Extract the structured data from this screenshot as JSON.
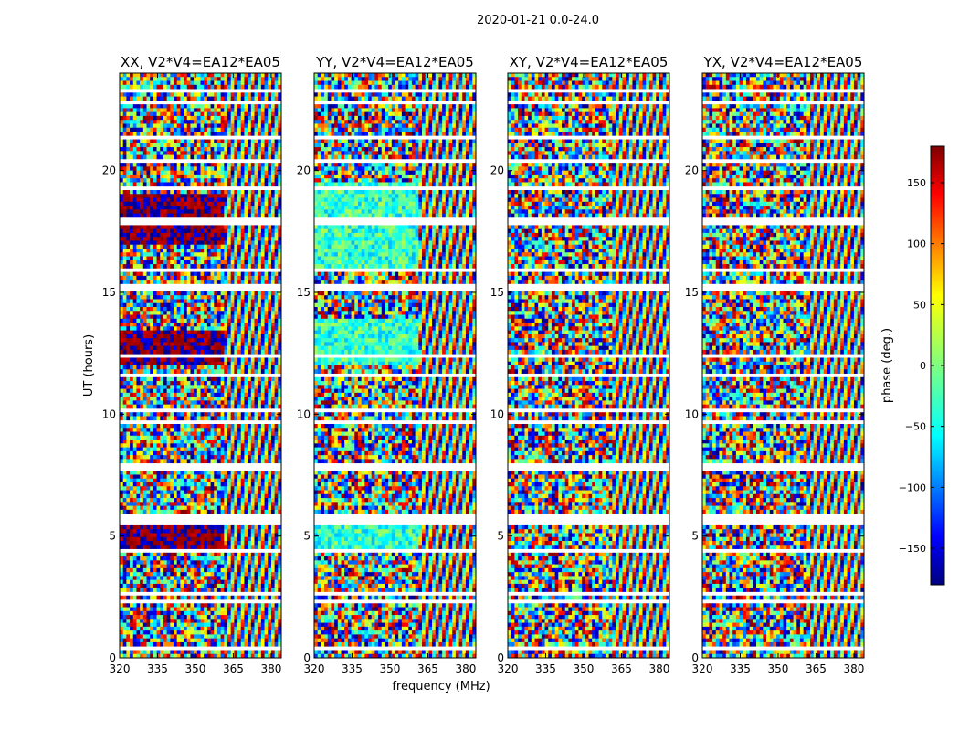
{
  "figure": {
    "suptitle": "2020-01-21 0.0-24.0"
  },
  "chart_data": {
    "type": "heatmap",
    "suptitle": "2020-01-21 0.0-24.0",
    "xlabel": "frequency (MHz)",
    "ylabel": "UT (hours)",
    "xlim": [
      320,
      384
    ],
    "ylim": [
      0,
      24
    ],
    "xticks": [
      320,
      335,
      350,
      365,
      380
    ],
    "xtick_labels": [
      "320",
      "335",
      "350",
      "365",
      "380"
    ],
    "yticks": [
      0,
      5,
      10,
      15,
      20
    ],
    "ytick_labels": [
      "0",
      "5",
      "10",
      "15",
      "20"
    ],
    "colorbar": {
      "label": "phase (deg.)",
      "range": [
        -180,
        180
      ],
      "colormap": "jet",
      "ticks": [
        150,
        100,
        50,
        0,
        -50,
        -100,
        -150
      ],
      "tick_labels": [
        "150",
        "100",
        "50",
        "0",
        "−50",
        "−100",
        "−150"
      ],
      "colors": [
        "#00007f",
        "#0000ff",
        "#007fff",
        "#00ffff",
        "#7fff7f",
        "#ffff00",
        "#ff7f00",
        "#ff0000",
        "#7f0000"
      ]
    },
    "panels": [
      {
        "title": "XX, V2*V4=EA12*EA05",
        "polarization": "XX",
        "theme": "noisy-red-blue"
      },
      {
        "title": "YY, V2*V4=EA12*EA05",
        "polarization": "YY",
        "theme": "noisy-cyan"
      },
      {
        "title": "XY, V2*V4=EA12*EA05",
        "polarization": "XY",
        "theme": "noisy"
      },
      {
        "title": "YX, V2*V4=EA12*EA05",
        "polarization": "YX",
        "theme": "noisy"
      }
    ],
    "flagged_gaps_hours": [
      [
        0.35,
        0.5
      ],
      [
        2.2,
        2.35
      ],
      [
        2.5,
        2.7
      ],
      [
        4.3,
        4.5
      ],
      [
        5.5,
        5.9
      ],
      [
        7.7,
        7.95
      ],
      [
        9.65,
        9.8
      ],
      [
        10.05,
        10.25
      ],
      [
        11.5,
        11.6
      ],
      [
        12.4,
        12.5
      ],
      [
        14.85,
        14.95
      ],
      [
        15.0,
        15.35
      ],
      [
        15.8,
        16.05
      ],
      [
        17.8,
        18.05
      ],
      [
        19.2,
        19.35
      ],
      [
        20.4,
        20.5
      ],
      [
        21.35,
        21.5
      ],
      [
        22.7,
        22.95
      ],
      [
        23.2,
        23.35
      ]
    ]
  }
}
